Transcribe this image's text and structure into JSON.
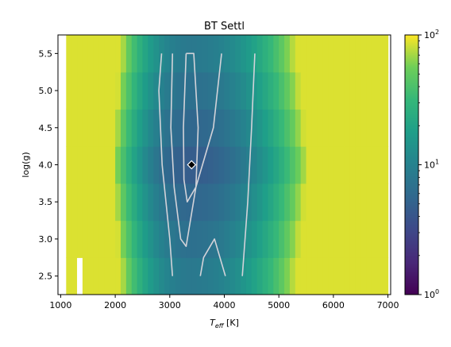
{
  "chart_data": {
    "type": "heatmap",
    "title": "BT Settl",
    "xlabel": {
      "base": "T",
      "subscript": "eff",
      "unit": " [K]"
    },
    "ylabel": "log(g)",
    "x_ticks": [
      "1000",
      "2000",
      "3000",
      "4000",
      "5000",
      "6000",
      "7000"
    ],
    "x_tick_values": [
      1000,
      2000,
      3000,
      4000,
      5000,
      6000,
      7000
    ],
    "y_ticks": [
      "2.5",
      "3.0",
      "3.5",
      "4.0",
      "4.5",
      "5.0",
      "5.5"
    ],
    "y_tick_values": [
      2.5,
      3.0,
      3.5,
      4.0,
      4.5,
      5.0,
      5.5
    ],
    "xlim": [
      950,
      7050
    ],
    "ylim": [
      2.25,
      5.75
    ],
    "x_cells": [
      1150,
      1250,
      1350,
      1450,
      1550,
      1650,
      1750,
      1850,
      1950,
      2050,
      2150,
      2250,
      2350,
      2450,
      2550,
      2650,
      2750,
      2850,
      2950,
      3050,
      3150,
      3250,
      3350,
      3450,
      3550,
      3650,
      3750,
      3850,
      3950,
      4050,
      4150,
      4250,
      4350,
      4450,
      4550,
      4650,
      4750,
      4850,
      4950,
      5050,
      5150,
      5250,
      5350,
      5450,
      5550,
      5650,
      5750,
      5850,
      5950,
      6050,
      6150,
      6250,
      6350,
      6450,
      6550,
      6650,
      6750,
      6850,
      6950
    ],
    "y_cells": [
      2.5,
      3.0,
      3.5,
      4.0,
      4.5,
      5.0,
      5.5
    ],
    "colorbar": {
      "scale": "log",
      "colormap": "viridis",
      "min": 1,
      "max": 100,
      "ticks": [
        {
          "base": "10",
          "exp": "0",
          "value": 1
        },
        {
          "base": "10",
          "exp": "1",
          "value": 10
        },
        {
          "base": "10",
          "exp": "2",
          "value": 100
        }
      ]
    },
    "missing_cells": [
      {
        "x": 1350,
        "y": 2.5
      }
    ],
    "contours": [
      [
        [
          2850,
          5.5
        ],
        [
          2800,
          5.0
        ],
        [
          2860,
          4.0
        ],
        [
          3000,
          3.0
        ],
        [
          3050,
          2.5
        ]
      ],
      [
        [
          3050,
          5.5
        ],
        [
          3020,
          4.5
        ],
        [
          3080,
          3.7
        ],
        [
          3200,
          3.0
        ],
        [
          3300,
          2.9
        ],
        [
          3480,
          3.7
        ],
        [
          3800,
          4.5
        ],
        [
          3950,
          5.5
        ]
      ],
      [
        [
          3300,
          5.5
        ],
        [
          3250,
          4.5
        ],
        [
          3260,
          3.8
        ],
        [
          3320,
          3.5
        ],
        [
          3480,
          3.7
        ],
        [
          3520,
          4.5
        ],
        [
          3440,
          5.5
        ],
        [
          3300,
          5.5
        ]
      ],
      [
        [
          3560,
          2.5
        ],
        [
          3620,
          2.75
        ],
        [
          3820,
          3.0
        ],
        [
          4020,
          2.5
        ]
      ],
      [
        [
          4330,
          2.5
        ],
        [
          4430,
          3.5
        ],
        [
          4500,
          4.5
        ],
        [
          4560,
          5.5
        ]
      ]
    ],
    "best_fit": {
      "x": 3400,
      "y": 4.0
    },
    "grid": false
  }
}
